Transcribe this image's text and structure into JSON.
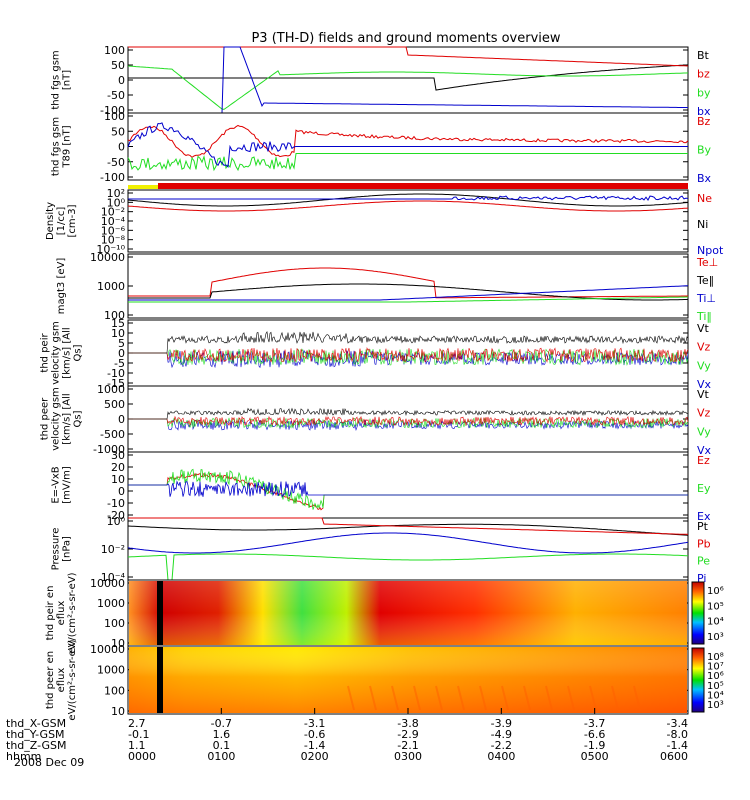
{
  "title": "P3 (TH-D) fields and ground moments overview",
  "date_label": "2008 Dec 09",
  "colors": {
    "black": "#000000",
    "red": "#e00000",
    "green": "#22dd22",
    "blue": "#0000cc",
    "yellow": "#f0f000"
  },
  "ephemeris": {
    "rows": [
      {
        "label": "thd_X-GSM",
        "values": [
          "2.7",
          "-0.7",
          "-3.1",
          "-3.8",
          "-3.9",
          "-3.7",
          "-3.4"
        ]
      },
      {
        "label": "thd_Y-GSM",
        "values": [
          "-0.1",
          "1.6",
          "-0.6",
          "-2.9",
          "-4.9",
          "-6.6",
          "-8.0"
        ]
      },
      {
        "label": "thd_Z-GSM",
        "values": [
          "1.1",
          "0.1",
          "-1.4",
          "-2.1",
          "-2.2",
          "-1.9",
          "-1.4"
        ]
      },
      {
        "label": "hhmm",
        "values": [
          "0000",
          "0100",
          "0200",
          "0300",
          "0400",
          "0500",
          "0600"
        ]
      }
    ]
  },
  "chart_data": [
    {
      "type": "line",
      "ylabel": "thd fgs gsm [nT]",
      "ylim": [
        -100,
        100
      ],
      "yticks": [
        "100",
        "50",
        "0",
        "-50",
        "-100"
      ],
      "legend": [
        {
          "name": "Bt",
          "color": "black"
        },
        {
          "name": "bz",
          "color": "red"
        },
        {
          "name": "by",
          "color": "green"
        },
        {
          "name": "bx",
          "color": "blue"
        }
      ]
    },
    {
      "type": "line",
      "ylabel": "thd fgs gsm T89 [nT]",
      "ylim": [
        -100,
        100
      ],
      "yticks": [
        "100",
        "50",
        "0",
        "-50",
        "-100"
      ],
      "legend": [
        {
          "name": "Bz",
          "color": "red"
        },
        {
          "name": "By",
          "color": "green"
        },
        {
          "name": "Bx",
          "color": "blue"
        }
      ]
    },
    {
      "type": "line",
      "ylabel": "Density [1/cc] [cm-3]",
      "scale": "log",
      "yticks": [
        "10²",
        "10⁰",
        "10⁻²",
        "10⁻⁴",
        "10⁻⁶",
        "10⁻⁸",
        "10⁻¹⁰"
      ],
      "legend": [
        {
          "name": "Ne",
          "color": "red"
        },
        {
          "name": "Ni",
          "color": "black"
        },
        {
          "name": "Npot",
          "color": "blue"
        }
      ]
    },
    {
      "type": "line",
      "ylabel": "magt3 [eV]",
      "scale": "log",
      "yticks": [
        "10000",
        "1000",
        "100"
      ],
      "legend": [
        {
          "name": "Te⊥",
          "color": "red"
        },
        {
          "name": "Te‖",
          "color": "black"
        },
        {
          "name": "Ti⊥",
          "color": "blue"
        },
        {
          "name": "Ti‖",
          "color": "green"
        }
      ]
    },
    {
      "type": "line",
      "ylabel": "thd peir velocity gsm [km/s] [All Qs]",
      "ylim": [
        -15,
        15
      ],
      "yticks": [
        "15",
        "10",
        "5",
        "0",
        "-5",
        "-10",
        "-15"
      ],
      "legend": [
        {
          "name": "Vt",
          "color": "black"
        },
        {
          "name": "Vz",
          "color": "red"
        },
        {
          "name": "Vy",
          "color": "green"
        },
        {
          "name": "Vx",
          "color": "blue"
        }
      ]
    },
    {
      "type": "line",
      "ylabel": "thd peer velocity gsm [km/s] [All Qs]",
      "ylim": [
        -1000,
        1000
      ],
      "yticks": [
        "1000",
        "500",
        "0",
        "-500",
        "-1000"
      ],
      "legend": [
        {
          "name": "Vt",
          "color": "black"
        },
        {
          "name": "Vz",
          "color": "red"
        },
        {
          "name": "Vy",
          "color": "green"
        },
        {
          "name": "Vx",
          "color": "blue"
        }
      ]
    },
    {
      "type": "line",
      "ylabel": "E=-VxB [mV/m]",
      "ylim": [
        -20,
        30
      ],
      "yticks": [
        "30",
        "20",
        "10",
        "0",
        "-10",
        "-20"
      ],
      "legend": [
        {
          "name": "Ez",
          "color": "red"
        },
        {
          "name": "Ey",
          "color": "green"
        },
        {
          "name": "Ex",
          "color": "blue"
        }
      ]
    },
    {
      "type": "line",
      "ylabel": "Pressure [nPa]",
      "scale": "log",
      "yticks": [
        "10⁰",
        "10⁻²",
        "10⁻⁴"
      ],
      "legend": [
        {
          "name": "Pt",
          "color": "black"
        },
        {
          "name": "Pb",
          "color": "red"
        },
        {
          "name": "Pe",
          "color": "green"
        },
        {
          "name": "Pi",
          "color": "blue"
        }
      ]
    },
    {
      "type": "heatmap",
      "ylabel": "thd peir en eflux eV/(cm²-s-sr-eV)",
      "scale": "log",
      "yticks": [
        "10000",
        "1000",
        "100",
        "10"
      ],
      "colorbar": [
        "10⁶",
        "10⁵",
        "10⁴",
        "10³"
      ]
    },
    {
      "type": "heatmap",
      "ylabel": "thd peer en eflux eV/(cm²-s-sr-eV)",
      "scale": "log",
      "yticks": [
        "10000",
        "1000",
        "100",
        "10"
      ],
      "colorbar": [
        "10⁸",
        "10⁷",
        "10⁶",
        "10⁵",
        "10⁴",
        "10³"
      ]
    }
  ]
}
